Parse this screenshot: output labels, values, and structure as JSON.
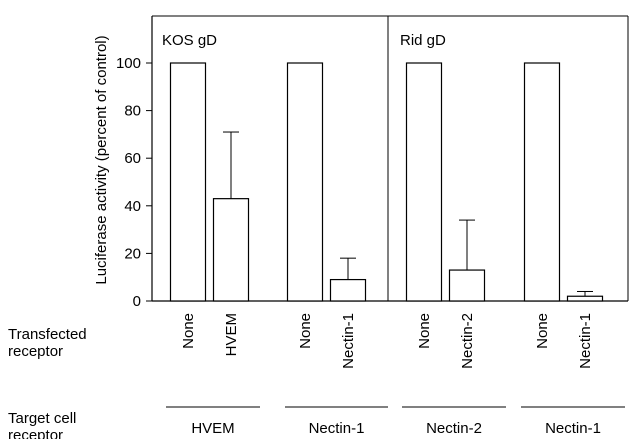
{
  "chart_data": {
    "type": "bar",
    "ylabel": "Luciferase activity (percent of control)",
    "ylim": [
      0,
      120
    ],
    "yticks": [
      0,
      20,
      40,
      60,
      80,
      100
    ],
    "panels": [
      {
        "label": "KOS gD"
      },
      {
        "label": "Rid gD"
      }
    ],
    "categories": [
      "None",
      "HVEM",
      "None",
      "Nectin-1",
      "None",
      "Nectin-2",
      "None",
      "Nectin-1"
    ],
    "values": [
      100,
      43,
      100,
      9,
      100,
      13,
      100,
      2
    ],
    "error_plus": [
      0,
      28,
      0,
      9,
      0,
      21,
      0,
      2
    ],
    "groups": [
      {
        "label": "HVEM"
      },
      {
        "label": "Nectin-1"
      },
      {
        "label": "Nectin-2"
      },
      {
        "label": "Nectin-1"
      }
    ],
    "row_labels": {
      "transfected": "Transfected receptor",
      "target": "Target cell receptor"
    },
    "grid": false,
    "legend": "none"
  }
}
